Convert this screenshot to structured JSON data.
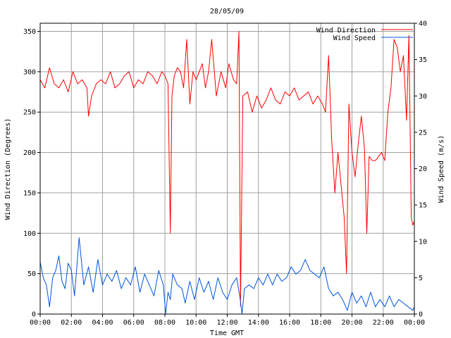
{
  "chart_data": {
    "type": "line",
    "title": "28/05/09",
    "xlabel": "Time GMT",
    "ylabel": "Wind Direction (Degrees)",
    "y2label": "Wind Speed (m/s)",
    "xlim": [
      0,
      24
    ],
    "ylim": [
      0,
      360
    ],
    "y2lim": [
      0,
      40
    ],
    "x_ticks": [
      {
        "value": 0,
        "label": "00:00"
      },
      {
        "value": 2,
        "label": "02:00"
      },
      {
        "value": 4,
        "label": "04:00"
      },
      {
        "value": 6,
        "label": "06:00"
      },
      {
        "value": 8,
        "label": "08:00"
      },
      {
        "value": 10,
        "label": "10:00"
      },
      {
        "value": 12,
        "label": "12:00"
      },
      {
        "value": 14,
        "label": "14:00"
      },
      {
        "value": 16,
        "label": "16:00"
      },
      {
        "value": 18,
        "label": "18:00"
      },
      {
        "value": 20,
        "label": "20:00"
      },
      {
        "value": 22,
        "label": "22:00"
      },
      {
        "value": 24,
        "label": "00:00"
      }
    ],
    "y_ticks": [
      {
        "value": 0,
        "label": "0"
      },
      {
        "value": 50,
        "label": "50"
      },
      {
        "value": 100,
        "label": "100"
      },
      {
        "value": 150,
        "label": "150"
      },
      {
        "value": 200,
        "label": "200"
      },
      {
        "value": 250,
        "label": "250"
      },
      {
        "value": 300,
        "label": "300"
      },
      {
        "value": 350,
        "label": "350"
      }
    ],
    "y2_ticks": [
      {
        "value": 0,
        "label": "0"
      },
      {
        "value": 5,
        "label": "5"
      },
      {
        "value": 10,
        "label": "10"
      },
      {
        "value": 15,
        "label": "15"
      },
      {
        "value": 20,
        "label": "20"
      },
      {
        "value": 25,
        "label": "25"
      },
      {
        "value": 30,
        "label": "30"
      },
      {
        "value": 35,
        "label": "35"
      },
      {
        "value": 40,
        "label": "40"
      }
    ],
    "grid": true,
    "legend_position": "top-right",
    "series": [
      {
        "name": "Wind Direction",
        "axis": "left",
        "color": "#ff0000",
        "x": [
          0,
          0.3,
          0.6,
          0.9,
          1.2,
          1.5,
          1.8,
          2.1,
          2.4,
          2.7,
          3.0,
          3.1,
          3.3,
          3.6,
          3.9,
          4.2,
          4.5,
          4.8,
          5.1,
          5.4,
          5.7,
          6.0,
          6.3,
          6.6,
          6.9,
          7.2,
          7.5,
          7.8,
          8.0,
          8.2,
          8.35,
          8.45,
          8.6,
          8.8,
          9.0,
          9.2,
          9.4,
          9.6,
          9.8,
          10.0,
          10.2,
          10.4,
          10.6,
          10.8,
          11.0,
          11.3,
          11.6,
          11.9,
          12.1,
          12.4,
          12.6,
          12.75,
          12.85,
          13.0,
          13.3,
          13.6,
          13.9,
          14.2,
          14.5,
          14.8,
          15.1,
          15.4,
          15.7,
          16.0,
          16.3,
          16.6,
          16.9,
          17.2,
          17.5,
          17.8,
          18.1,
          18.3,
          18.5,
          18.7,
          18.9,
          19.1,
          19.3,
          19.5,
          19.65,
          19.8,
          20.0,
          20.2,
          20.4,
          20.6,
          20.8,
          20.95,
          21.1,
          21.3,
          21.5,
          21.7,
          21.9,
          22.1,
          22.3,
          22.5,
          22.7,
          22.9,
          23.1,
          23.3,
          23.5,
          23.65,
          23.8,
          23.9,
          24
        ],
        "values": [
          290,
          280,
          305,
          285,
          280,
          290,
          275,
          300,
          285,
          290,
          280,
          245,
          270,
          285,
          290,
          285,
          300,
          280,
          285,
          295,
          300,
          280,
          290,
          285,
          300,
          295,
          285,
          300,
          295,
          285,
          100,
          270,
          295,
          305,
          300,
          280,
          340,
          260,
          300,
          290,
          300,
          310,
          280,
          300,
          340,
          270,
          300,
          280,
          310,
          290,
          285,
          350,
          10,
          270,
          275,
          250,
          270,
          255,
          265,
          280,
          265,
          260,
          275,
          270,
          280,
          265,
          270,
          275,
          260,
          270,
          260,
          250,
          320,
          215,
          150,
          200,
          160,
          120,
          50,
          260,
          200,
          170,
          210,
          245,
          205,
          100,
          195,
          190,
          190,
          195,
          200,
          190,
          250,
          280,
          340,
          330,
          300,
          320,
          240,
          345,
          120,
          110,
          115
        ]
      },
      {
        "name": "Wind Speed",
        "axis": "right",
        "color": "#0055dd",
        "x": [
          0,
          0.2,
          0.4,
          0.6,
          0.8,
          1.0,
          1.2,
          1.4,
          1.6,
          1.8,
          2.0,
          2.2,
          2.5,
          2.8,
          3.1,
          3.4,
          3.7,
          4.0,
          4.3,
          4.6,
          4.9,
          5.2,
          5.5,
          5.8,
          6.1,
          6.4,
          6.7,
          7.0,
          7.3,
          7.6,
          7.9,
          8.05,
          8.2,
          8.35,
          8.5,
          8.8,
          9.1,
          9.3,
          9.6,
          9.9,
          10.2,
          10.5,
          10.8,
          11.1,
          11.4,
          11.7,
          12.0,
          12.3,
          12.6,
          12.8,
          12.95,
          13.1,
          13.4,
          13.7,
          14.0,
          14.3,
          14.6,
          14.9,
          15.2,
          15.5,
          15.8,
          16.1,
          16.4,
          16.7,
          17.0,
          17.3,
          17.6,
          17.9,
          18.2,
          18.5,
          18.8,
          19.1,
          19.4,
          19.7,
          20.0,
          20.3,
          20.6,
          20.9,
          21.2,
          21.5,
          21.8,
          22.1,
          22.4,
          22.7,
          23.0,
          23.3,
          23.6,
          23.9,
          24
        ],
        "values": [
          7.2,
          5,
          4,
          1,
          5,
          6,
          8,
          4.5,
          3.5,
          7,
          6,
          2.5,
          10.5,
          4,
          6.5,
          3,
          7.5,
          4,
          5.5,
          4.5,
          6,
          3.5,
          5,
          4,
          6.5,
          3,
          5.5,
          4,
          2.5,
          6,
          4,
          0,
          3,
          2,
          5.5,
          4,
          3.5,
          1.5,
          4.5,
          2,
          5,
          3,
          4.5,
          2,
          5,
          3,
          2,
          4,
          5,
          2.5,
          0,
          3.5,
          4,
          3.5,
          5,
          4,
          5.5,
          4,
          5.5,
          4.5,
          5,
          6.5,
          5.5,
          6,
          7.5,
          6,
          5.5,
          5,
          6.5,
          3.5,
          2.5,
          3,
          2,
          0.5,
          3,
          1.5,
          2.5,
          1,
          3,
          1,
          2,
          1,
          2.5,
          1,
          2,
          1.5,
          1,
          0.5,
          1
        ]
      }
    ]
  }
}
